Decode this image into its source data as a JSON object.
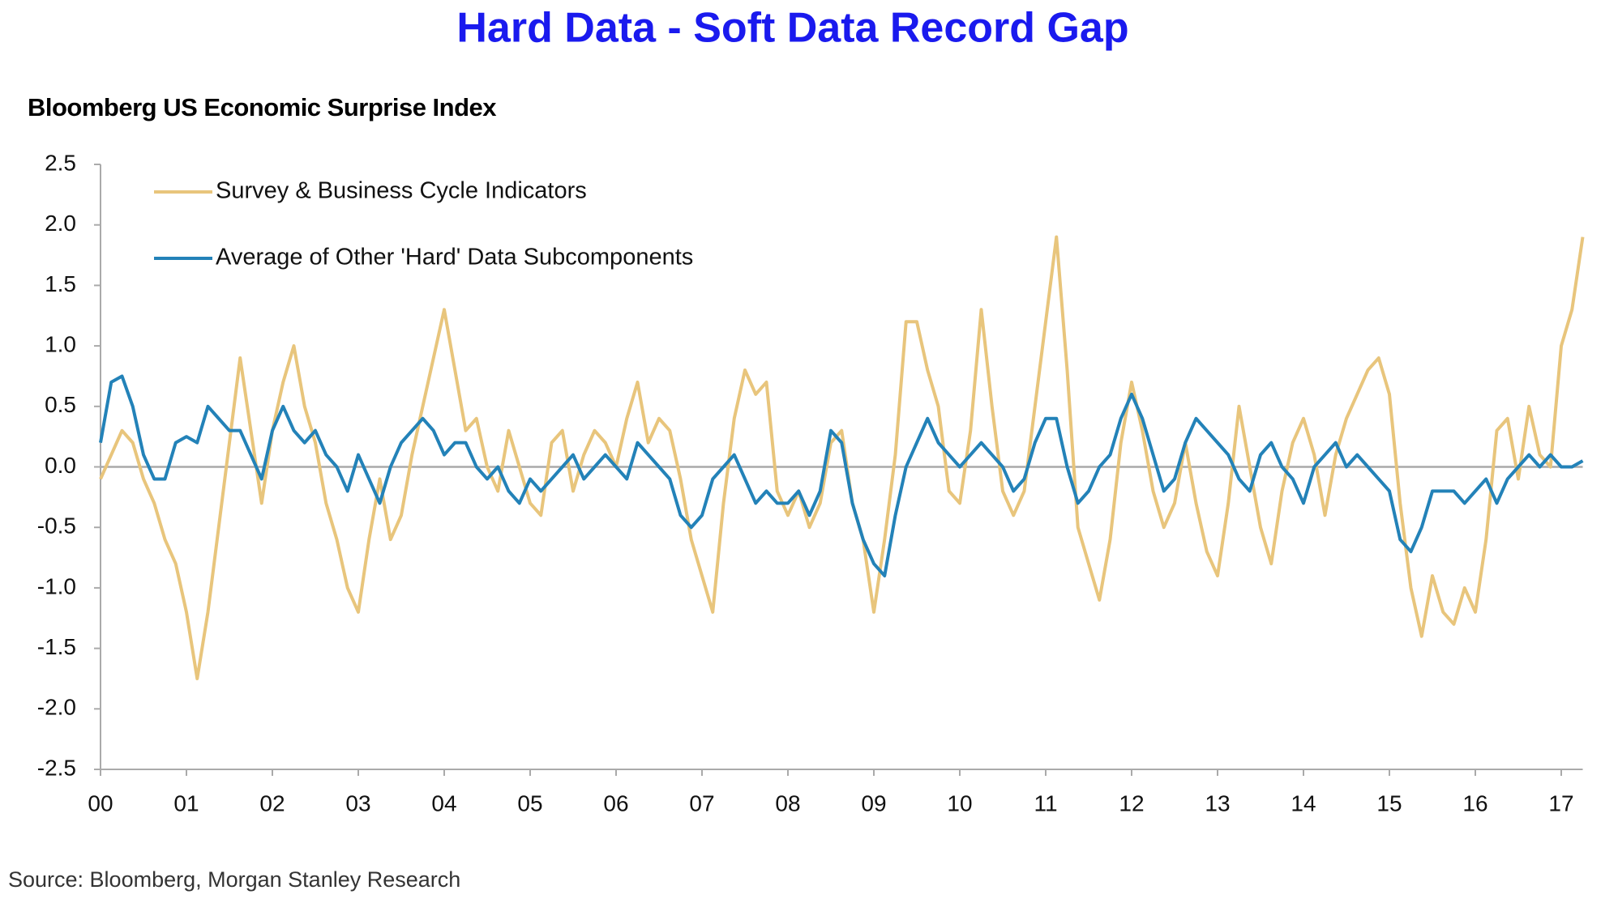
{
  "chart_data": {
    "type": "line",
    "title": "Hard Data - Soft Data Record Gap",
    "subtitle": "Bloomberg US Economic Surprise Index",
    "source": "Source: Bloomberg, Morgan Stanley Research",
    "xlim": [
      2000,
      2017.25
    ],
    "ylim": [
      -2.5,
      2.5
    ],
    "xticks": [
      {
        "value": 2000,
        "label": "00"
      },
      {
        "value": 2001,
        "label": "01"
      },
      {
        "value": 2002,
        "label": "02"
      },
      {
        "value": 2003,
        "label": "03"
      },
      {
        "value": 2004,
        "label": "04"
      },
      {
        "value": 2005,
        "label": "05"
      },
      {
        "value": 2006,
        "label": "06"
      },
      {
        "value": 2007,
        "label": "07"
      },
      {
        "value": 2008,
        "label": "08"
      },
      {
        "value": 2009,
        "label": "09"
      },
      {
        "value": 2010,
        "label": "10"
      },
      {
        "value": 2011,
        "label": "11"
      },
      {
        "value": 2012,
        "label": "12"
      },
      {
        "value": 2013,
        "label": "13"
      },
      {
        "value": 2014,
        "label": "14"
      },
      {
        "value": 2015,
        "label": "15"
      },
      {
        "value": 2016,
        "label": "16"
      },
      {
        "value": 2017,
        "label": "17"
      }
    ],
    "yticks": [
      2.5,
      {
        "value": 2,
        "label": "2.0"
      },
      1.5,
      {
        "value": 1,
        "label": "1.0"
      },
      0.5,
      {
        "value": 0,
        "label": "0.0"
      },
      -0.5,
      {
        "value": -1,
        "label": "-1.0"
      },
      -1.5,
      {
        "value": -2,
        "label": "-2.0"
      },
      -2.5
    ],
    "x": [
      2000,
      2000.125,
      2000.25,
      2000.375,
      2000.5,
      2000.625,
      2000.75,
      2000.875,
      2001,
      2001.125,
      2001.25,
      2001.375,
      2001.5,
      2001.625,
      2001.75,
      2001.875,
      2002,
      2002.125,
      2002.25,
      2002.375,
      2002.5,
      2002.625,
      2002.75,
      2002.875,
      2003,
      2003.125,
      2003.25,
      2003.375,
      2003.5,
      2003.625,
      2003.75,
      2003.875,
      2004,
      2004.125,
      2004.25,
      2004.375,
      2004.5,
      2004.625,
      2004.75,
      2004.875,
      2005,
      2005.125,
      2005.25,
      2005.375,
      2005.5,
      2005.625,
      2005.75,
      2005.875,
      2006,
      2006.125,
      2006.25,
      2006.375,
      2006.5,
      2006.625,
      2006.75,
      2006.875,
      2007,
      2007.125,
      2007.25,
      2007.375,
      2007.5,
      2007.625,
      2007.75,
      2007.875,
      2008,
      2008.125,
      2008.25,
      2008.375,
      2008.5,
      2008.625,
      2008.75,
      2008.875,
      2009,
      2009.125,
      2009.25,
      2009.375,
      2009.5,
      2009.625,
      2009.75,
      2009.875,
      2010,
      2010.125,
      2010.25,
      2010.375,
      2010.5,
      2010.625,
      2010.75,
      2010.875,
      2011,
      2011.125,
      2011.25,
      2011.375,
      2011.5,
      2011.625,
      2011.75,
      2011.875,
      2012,
      2012.125,
      2012.25,
      2012.375,
      2012.5,
      2012.625,
      2012.75,
      2012.875,
      2013,
      2013.125,
      2013.25,
      2013.375,
      2013.5,
      2013.625,
      2013.75,
      2013.875,
      2014,
      2014.125,
      2014.25,
      2014.375,
      2014.5,
      2014.625,
      2014.75,
      2014.875,
      2015,
      2015.125,
      2015.25,
      2015.375,
      2015.5,
      2015.625,
      2015.75,
      2015.875,
      2016,
      2016.125,
      2016.25,
      2016.375,
      2016.5,
      2016.625,
      2016.75,
      2016.875,
      2017,
      2017.125,
      2017.25
    ],
    "series": [
      {
        "name": "Survey & Business Cycle Indicators",
        "color": "#e8c57c",
        "values": [
          -0.1,
          0.1,
          0.3,
          0.2,
          -0.1,
          -0.3,
          -0.6,
          -0.8,
          -1.2,
          -1.75,
          -1.2,
          -0.5,
          0.2,
          0.9,
          0.3,
          -0.3,
          0.3,
          0.7,
          1.0,
          0.5,
          0.2,
          -0.3,
          -0.6,
          -1.0,
          -1.2,
          -0.6,
          -0.1,
          -0.6,
          -0.4,
          0.1,
          0.5,
          0.9,
          1.3,
          0.8,
          0.3,
          0.4,
          0.0,
          -0.2,
          0.3,
          0.0,
          -0.3,
          -0.4,
          0.2,
          0.3,
          -0.2,
          0.1,
          0.3,
          0.2,
          0.0,
          0.4,
          0.7,
          0.2,
          0.4,
          0.3,
          -0.1,
          -0.6,
          -0.9,
          -1.2,
          -0.3,
          0.4,
          0.8,
          0.6,
          0.7,
          -0.2,
          -0.4,
          -0.2,
          -0.5,
          -0.3,
          0.2,
          0.3,
          -0.3,
          -0.6,
          -1.2,
          -0.6,
          0.1,
          1.2,
          1.2,
          0.8,
          0.5,
          -0.2,
          -0.3,
          0.3,
          1.3,
          0.5,
          -0.2,
          -0.4,
          -0.2,
          0.5,
          1.2,
          1.9,
          0.8,
          -0.5,
          -0.8,
          -1.1,
          -0.6,
          0.2,
          0.7,
          0.3,
          -0.2,
          -0.5,
          -0.3,
          0.2,
          -0.3,
          -0.7,
          -0.9,
          -0.3,
          0.5,
          0.0,
          -0.5,
          -0.8,
          -0.2,
          0.2,
          0.4,
          0.1,
          -0.4,
          0.1,
          0.4,
          0.6,
          0.8,
          0.9,
          0.6,
          -0.3,
          -1.0,
          -1.4,
          -0.9,
          -1.2,
          -1.3,
          -1.0,
          -1.2,
          -0.6,
          0.3,
          0.4,
          -0.1,
          0.5,
          0.1,
          0.0,
          1.0,
          1.3,
          1.9
        ]
      },
      {
        "name": "Average of Other 'Hard' Data Subcomponents",
        "color": "#2382b8",
        "values": [
          0.2,
          0.7,
          0.75,
          0.5,
          0.1,
          -0.1,
          -0.1,
          0.2,
          0.25,
          0.2,
          0.5,
          0.4,
          0.3,
          0.3,
          0.1,
          -0.1,
          0.3,
          0.5,
          0.3,
          0.2,
          0.3,
          0.1,
          0.0,
          -0.2,
          0.1,
          -0.1,
          -0.3,
          0.0,
          0.2,
          0.3,
          0.4,
          0.3,
          0.1,
          0.2,
          0.2,
          0.0,
          -0.1,
          0.0,
          -0.2,
          -0.3,
          -0.1,
          -0.2,
          -0.1,
          0.0,
          0.1,
          -0.1,
          0.0,
          0.1,
          0.0,
          -0.1,
          0.2,
          0.1,
          0.0,
          -0.1,
          -0.4,
          -0.5,
          -0.4,
          -0.1,
          0.0,
          0.1,
          -0.1,
          -0.3,
          -0.2,
          -0.3,
          -0.3,
          -0.2,
          -0.4,
          -0.2,
          0.3,
          0.2,
          -0.3,
          -0.6,
          -0.8,
          -0.9,
          -0.4,
          0.0,
          0.2,
          0.4,
          0.2,
          0.1,
          0.0,
          0.1,
          0.2,
          0.1,
          0.0,
          -0.2,
          -0.1,
          0.2,
          0.4,
          0.4,
          0.0,
          -0.3,
          -0.2,
          0.0,
          0.1,
          0.4,
          0.6,
          0.4,
          0.1,
          -0.2,
          -0.1,
          0.2,
          0.4,
          0.3,
          0.2,
          0.1,
          -0.1,
          -0.2,
          0.1,
          0.2,
          0.0,
          -0.1,
          -0.3,
          0.0,
          0.1,
          0.2,
          0.0,
          0.1,
          0.0,
          -0.1,
          -0.2,
          -0.6,
          -0.7,
          -0.5,
          -0.2,
          -0.2,
          -0.2,
          -0.3,
          -0.2,
          -0.1,
          -0.3,
          -0.1,
          0.0,
          0.1,
          0.0,
          0.1,
          0.0,
          0.0,
          0.05
        ]
      }
    ]
  }
}
